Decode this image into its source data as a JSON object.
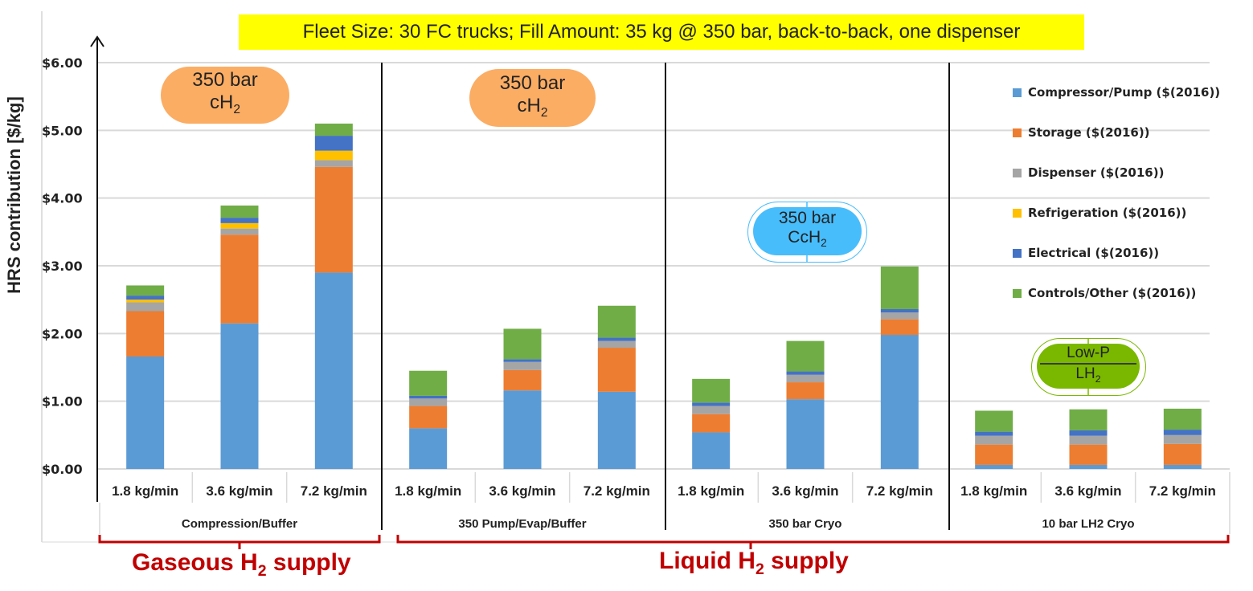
{
  "banner": "Fleet Size: 30 FC trucks; Fill Amount: 35 kg @ 350 bar, back-to-back, one dispenser",
  "annotations": {
    "pill1": {
      "line1": "350 bar",
      "line2": "cH",
      "sub": "2"
    },
    "pill2": {
      "line1": "350 bar",
      "line2": "cH",
      "sub": "2"
    },
    "pill3": {
      "line1": "350 bar",
      "line2": "CcH",
      "sub": "2"
    },
    "pill4": {
      "line1": "Low-P",
      "line2": "LH",
      "sub": "2"
    }
  },
  "supply_labels": {
    "gaseous": {
      "pre": "Gaseous H",
      "sub": "2",
      "post": " supply"
    },
    "liquid": {
      "pre": "Liquid H",
      "sub": "2",
      "post": " supply"
    }
  },
  "colors": {
    "compressor": "#5b9bd5",
    "storage": "#ed7d31",
    "dispenser": "#a5a5a5",
    "refrigeration": "#ffc000",
    "electrical": "#4472c4",
    "controls": "#70ad47",
    "bracket": "#c00000"
  },
  "chart_data": {
    "type": "bar",
    "stacked": true,
    "title": "",
    "ylabel": "HRS contribution [$/kg]",
    "xlabel": "",
    "ylim": [
      0,
      6
    ],
    "yticks": [
      "$0.00",
      "$1.00",
      "$2.00",
      "$3.00",
      "$4.00",
      "$5.00",
      "$6.00"
    ],
    "grid": true,
    "legend_position": "top-right",
    "groups": [
      "Compression/Buffer",
      "350 Pump/Evap/Buffer",
      "350 bar Cryo",
      "10 bar LH2 Cryo"
    ],
    "categories": [
      "1.8 kg/min",
      "3.6 kg/min",
      "7.2 kg/min",
      "1.8 kg/min",
      "3.6 kg/min",
      "7.2 kg/min",
      "1.8 kg/min",
      "3.6 kg/min",
      "7.2 kg/min",
      "1.8 kg/min",
      "3.6 kg/min",
      "7.2 kg/min"
    ],
    "series": [
      {
        "name": "Compressor/Pump ($(2016))",
        "key": "compressor",
        "values": [
          1.66,
          2.15,
          2.9,
          0.6,
          1.16,
          1.14,
          0.54,
          1.03,
          1.98,
          0.06,
          0.06,
          0.06
        ]
      },
      {
        "name": "Storage ($(2016))",
        "key": "storage",
        "values": [
          0.67,
          1.31,
          1.56,
          0.33,
          0.3,
          0.65,
          0.27,
          0.25,
          0.23,
          0.3,
          0.3,
          0.31
        ]
      },
      {
        "name": "Dispenser ($(2016))",
        "key": "dispenser",
        "values": [
          0.13,
          0.09,
          0.1,
          0.11,
          0.12,
          0.1,
          0.12,
          0.11,
          0.1,
          0.13,
          0.13,
          0.13
        ]
      },
      {
        "name": "Refrigeration ($(2016))",
        "key": "refrigeration",
        "values": [
          0.04,
          0.08,
          0.14,
          0,
          0,
          0,
          0,
          0,
          0,
          0,
          0,
          0
        ]
      },
      {
        "name": "Electrical ($(2016))",
        "key": "electrical",
        "values": [
          0.06,
          0.08,
          0.22,
          0.04,
          0.04,
          0.05,
          0.05,
          0.05,
          0.05,
          0.06,
          0.08,
          0.08
        ]
      },
      {
        "name": "Controls/Other ($(2016))",
        "key": "controls",
        "values": [
          0.15,
          0.18,
          0.18,
          0.37,
          0.45,
          0.47,
          0.35,
          0.45,
          0.63,
          0.31,
          0.31,
          0.31
        ]
      }
    ]
  }
}
